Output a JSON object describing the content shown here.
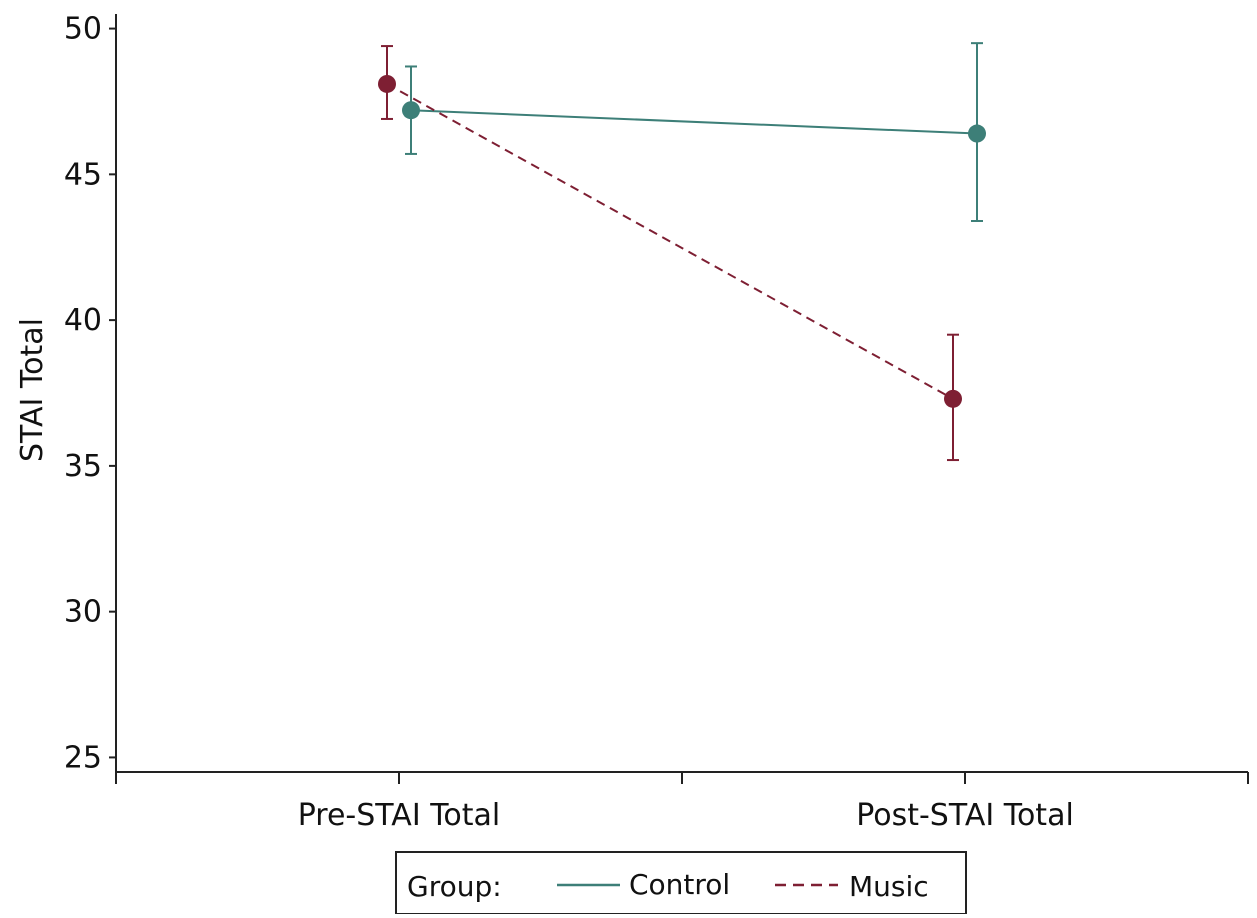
{
  "chart_data": {
    "type": "line",
    "title": "",
    "xlabel": "",
    "ylabel": "STAI Total",
    "categories": [
      "Pre-STAI Total",
      "Post-STAI Total"
    ],
    "ylim": [
      24.5,
      50.5
    ],
    "yticks": [
      25,
      30,
      35,
      40,
      45,
      50
    ],
    "grid": false,
    "legend": {
      "title": "Group:",
      "placement": "bottom"
    },
    "series": [
      {
        "name": "Control",
        "color": "#3d7f78",
        "line_style": "solid",
        "values": [
          47.2,
          46.4
        ],
        "err_low": [
          45.7,
          43.4
        ],
        "err_high": [
          48.7,
          49.5
        ]
      },
      {
        "name": "Music",
        "color": "#7e1f33",
        "line_style": "dashed",
        "values": [
          48.1,
          37.3
        ],
        "err_low": [
          46.9,
          35.2
        ],
        "err_high": [
          49.4,
          39.5
        ]
      }
    ]
  }
}
